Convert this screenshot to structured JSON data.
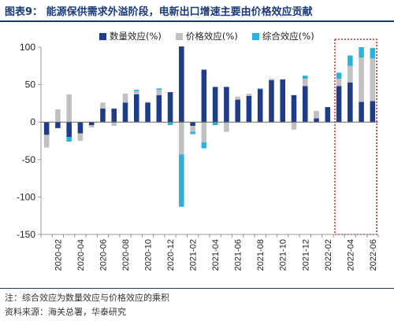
{
  "figure": {
    "title": "图表9：  能源保供需求外溢阶段，电新出口增速主要由价格效应贡献",
    "note": "注：综合效应为数量效应与价格效应的乘积",
    "source": "资料来源：海关总署，华泰研究"
  },
  "colors": {
    "quantity": "#1f3c88",
    "price": "#c0c0c0",
    "combined": "#2bb0e0",
    "highlight_box": "#d92b2b",
    "title": "#1a3a78"
  },
  "chart_data": {
    "type": "bar",
    "stacked": true,
    "ylim": [
      -150,
      100
    ],
    "yticks": [
      100,
      50,
      0,
      -50,
      -100,
      -150
    ],
    "grid": false,
    "legend_position": "top",
    "categories": [
      "2020-01",
      "2020-02",
      "2020-03",
      "2020-04",
      "2020-05",
      "2020-06",
      "2020-07",
      "2020-08",
      "2020-09",
      "2020-10",
      "2020-11",
      "2020-12",
      "2021-01",
      "2021-02",
      "2021-03",
      "2021-04",
      "2021-05",
      "2021-06",
      "2021-07",
      "2021-08",
      "2021-09",
      "2021-10",
      "2021-11",
      "2021-12",
      "2022-01",
      "2022-02",
      "2022-03",
      "2022-04",
      "2022-05",
      "2022-06"
    ],
    "xtick_labels": [
      "2020-02",
      "2020-04",
      "2020-06",
      "2020-08",
      "2020-10",
      "2020-12",
      "2021-02",
      "2021-04",
      "2021-06",
      "2021-08",
      "2021-10",
      "2021-12",
      "2022-02",
      "2022-04",
      "2022-06"
    ],
    "series": [
      {
        "name": "数量效应(%)",
        "values": [
          -17,
          -8,
          -20,
          -15,
          -4,
          18,
          18,
          26,
          37,
          26,
          36,
          40,
          101,
          -5,
          70,
          47,
          47,
          30,
          35,
          44,
          56,
          57,
          36,
          48,
          5,
          20,
          48,
          53,
          27,
          28
        ]
      },
      {
        "name": "价格效应(%)",
        "values": [
          -17,
          17,
          37,
          -10,
          -3,
          8,
          -5,
          12,
          4,
          1,
          7,
          0,
          -43,
          -8,
          -27,
          0,
          -13,
          4,
          3,
          0,
          2,
          0,
          -10,
          10,
          10,
          0,
          10,
          22,
          59,
          57
        ]
      },
      {
        "name": "综合效应(%)",
        "values": [
          0,
          0,
          -6,
          0,
          0,
          0,
          0,
          0,
          2,
          0,
          2,
          -4,
          -70,
          -3,
          -8,
          -4,
          0,
          0,
          0,
          1,
          0,
          0,
          0,
          4,
          0,
          0,
          8,
          14,
          14,
          14
        ]
      }
    ],
    "highlight": {
      "from": "2022-03",
      "to": "2022-06"
    }
  }
}
